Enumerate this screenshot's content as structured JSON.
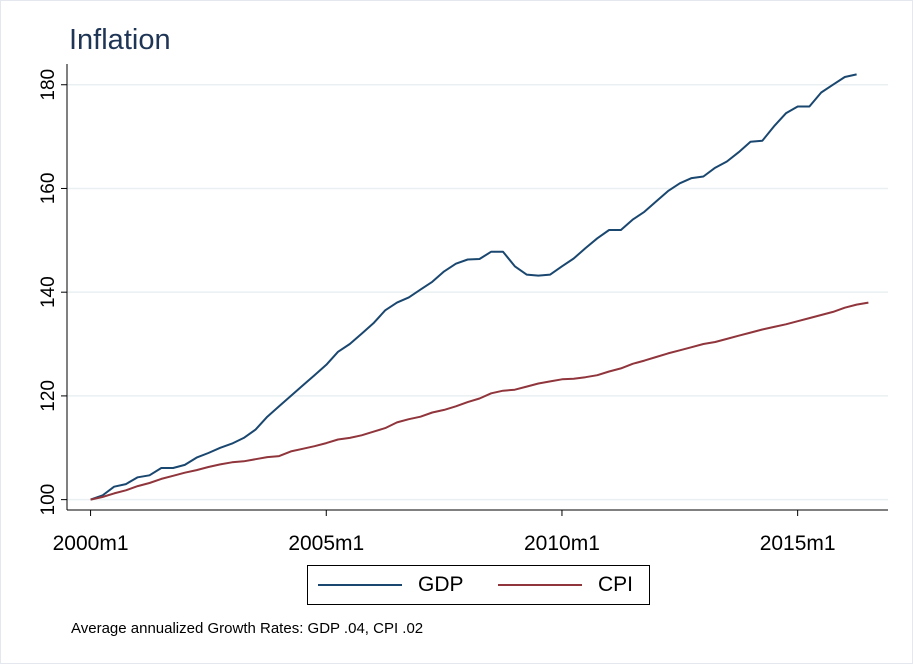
{
  "title": "Inflation",
  "note": "Average annualized Growth Rates: GDP .04, CPI .02",
  "colors": {
    "gdp": "#1a476f",
    "cpi": "#90353b",
    "grid": "#eaf0f2",
    "axis": "#000000"
  },
  "chart_data": {
    "type": "line",
    "title": "Inflation",
    "xlabel": "",
    "ylabel": "",
    "x_ticks": [
      {
        "label": "2000m1",
        "value": 0
      },
      {
        "label": "2005m1",
        "value": 60
      },
      {
        "label": "2010m1",
        "value": 120
      },
      {
        "label": "2015m1",
        "value": 180
      }
    ],
    "y_ticks": [
      {
        "label": "100",
        "value": 100
      },
      {
        "label": "120",
        "value": 120
      },
      {
        "label": "140",
        "value": 140
      },
      {
        "label": "160",
        "value": 160
      },
      {
        "label": "180",
        "value": 180
      }
    ],
    "xlim": [
      -6,
      203
    ],
    "ylim": [
      98,
      184
    ],
    "grid": true,
    "legend": "bottom",
    "series": [
      {
        "name": "GDP",
        "x": [
          0,
          3,
          6,
          9,
          12,
          15,
          18,
          21,
          24,
          27,
          30,
          33,
          36,
          39,
          42,
          45,
          48,
          51,
          54,
          57,
          60,
          63,
          66,
          69,
          72,
          75,
          78,
          81,
          84,
          87,
          90,
          93,
          96,
          99,
          102,
          105,
          108,
          111,
          114,
          117,
          120,
          123,
          126,
          129,
          132,
          135,
          138,
          141,
          144,
          147,
          150,
          153,
          156,
          159,
          162,
          165,
          168,
          171,
          174,
          177,
          180,
          183,
          186,
          189,
          192,
          195
        ],
        "values": [
          100,
          100.8,
          102.5,
          103,
          104.3,
          104.7,
          106.1,
          106.1,
          106.7,
          108.1,
          109,
          110,
          110.8,
          111.9,
          113.5,
          116,
          118,
          120,
          122,
          124,
          126,
          128.5,
          130,
          132,
          134,
          136.5,
          138,
          139,
          140.5,
          142,
          144,
          145.5,
          146.3,
          146.4,
          147.8,
          147.8,
          145,
          143.4,
          143.2,
          143.4,
          145,
          146.5,
          148.5,
          150.4,
          152,
          152,
          154,
          155.5,
          157.5,
          159.5,
          161,
          162,
          162.3,
          164,
          165.2,
          167,
          169,
          169.2,
          172,
          174.5,
          175.8,
          175.8,
          178.5,
          180,
          181.5,
          182
        ]
      },
      {
        "name": "CPI",
        "x": [
          0,
          3,
          6,
          9,
          12,
          15,
          18,
          21,
          24,
          27,
          30,
          33,
          36,
          39,
          42,
          45,
          48,
          51,
          54,
          57,
          60,
          63,
          66,
          69,
          72,
          75,
          78,
          81,
          84,
          87,
          90,
          93,
          96,
          99,
          102,
          105,
          108,
          111,
          114,
          117,
          120,
          123,
          126,
          129,
          132,
          135,
          138,
          141,
          144,
          147,
          150,
          153,
          156,
          159,
          162,
          165,
          168,
          171,
          174,
          177,
          180,
          183,
          186,
          189,
          192,
          195,
          198
        ],
        "values": [
          100,
          100.5,
          101.2,
          101.8,
          102.6,
          103.2,
          104,
          104.6,
          105.2,
          105.7,
          106.3,
          106.8,
          107.2,
          107.4,
          107.8,
          108.2,
          108.4,
          109.3,
          109.8,
          110.3,
          110.9,
          111.6,
          111.9,
          112.4,
          113.1,
          113.8,
          114.9,
          115.5,
          116,
          116.8,
          117.3,
          118,
          118.8,
          119.5,
          120.5,
          121,
          121.2,
          121.8,
          122.4,
          122.8,
          123.2,
          123.3,
          123.6,
          124,
          124.7,
          125.3,
          126.2,
          126.8,
          127.5,
          128.2,
          128.8,
          129.4,
          130,
          130.4,
          131,
          131.6,
          132.2,
          132.8,
          133.3,
          133.8,
          134.4,
          135,
          135.6,
          136.2,
          137,
          137.6,
          138
        ]
      }
    ]
  },
  "legend": {
    "items": [
      {
        "label": "GDP"
      },
      {
        "label": "CPI"
      }
    ]
  }
}
